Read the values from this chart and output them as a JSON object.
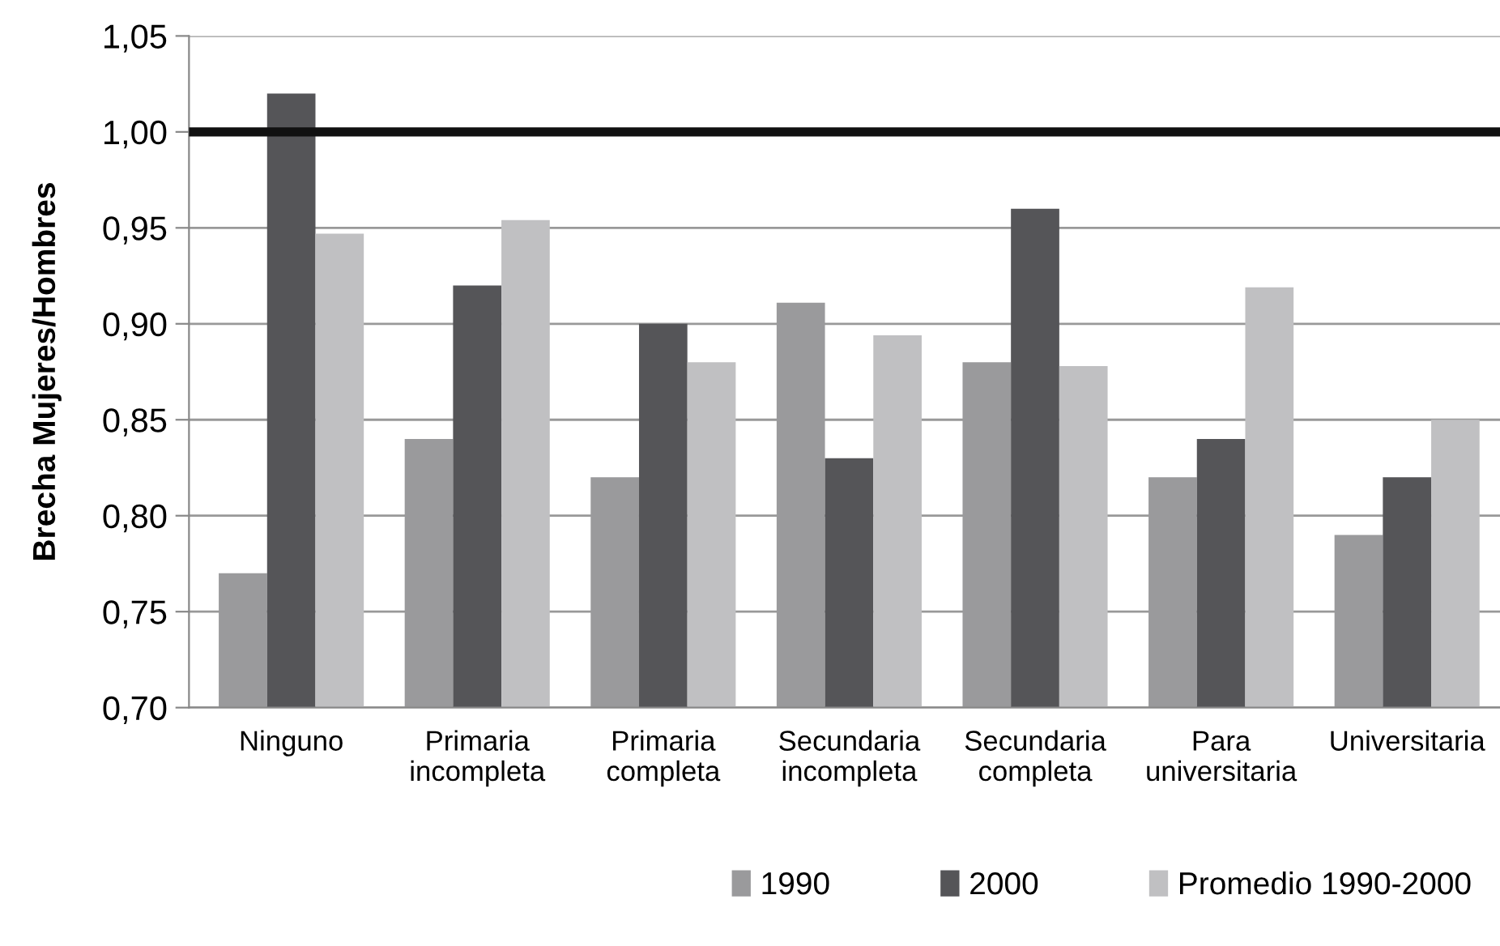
{
  "chart_data": {
    "type": "bar",
    "ylabel": "Brecha Mujeres/Hombres",
    "categories": [
      "Ninguno",
      "Primaria\nincompleta",
      "Primaria\ncompleta",
      "Secundaria\nincompleta",
      "Secundaria\ncompleta",
      "Para\nuniversitaria",
      "Universitaria"
    ],
    "series": [
      {
        "name": "1990",
        "color": "#9a9a9c",
        "values": [
          0.77,
          0.84,
          0.82,
          0.911,
          0.88,
          0.82,
          0.79
        ]
      },
      {
        "name": "2000",
        "color": "#555558",
        "values": [
          1.02,
          0.92,
          0.9,
          0.83,
          0.96,
          0.84,
          0.82
        ]
      },
      {
        "name": "Promedio 1990-2000",
        "color": "#c0c0c2",
        "values": [
          0.947,
          0.954,
          0.88,
          0.894,
          0.878,
          0.919,
          0.85
        ]
      }
    ],
    "ylim": [
      0.7,
      1.05
    ],
    "yticks": [
      {
        "value": 0.7,
        "label": "0,70"
      },
      {
        "value": 0.75,
        "label": "0,75"
      },
      {
        "value": 0.8,
        "label": "0,80"
      },
      {
        "value": 0.85,
        "label": "0,85"
      },
      {
        "value": 0.9,
        "label": "0,90"
      },
      {
        "value": 0.95,
        "label": "0,95"
      },
      {
        "value": 1.0,
        "label": "1,00"
      },
      {
        "value": 1.05,
        "label": "1,05"
      }
    ],
    "ref_lines": [
      {
        "axis": "y",
        "value": 1.0,
        "color": "#111111"
      }
    ],
    "grid": "y",
    "legend": "bottom right"
  }
}
